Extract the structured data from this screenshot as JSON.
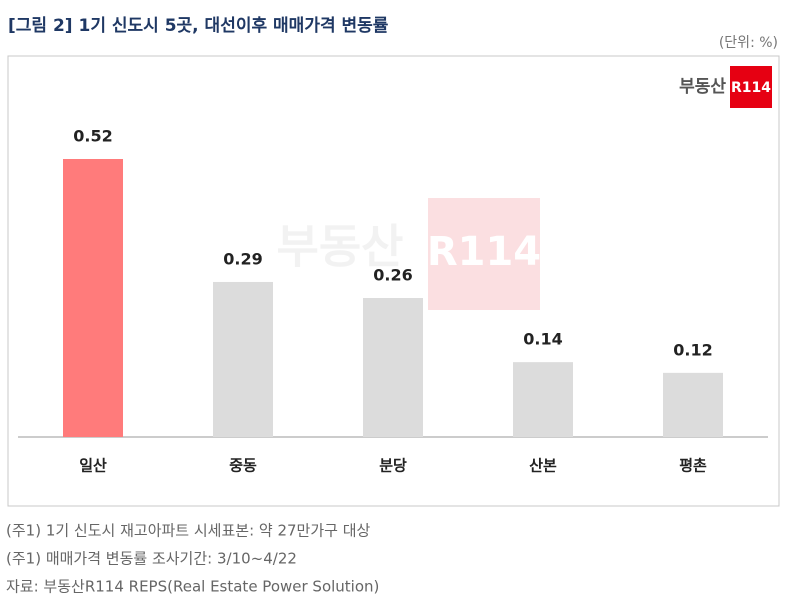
{
  "chart_data": {
    "type": "bar",
    "title": "[그림 2] 1기 신도시 5곳, 대선이후 매매가격 변동률",
    "unit": "(단위: %)",
    "logo": {
      "name": "부동산",
      "mark": "R114"
    },
    "categories": [
      "일산",
      "중동",
      "분당",
      "산본",
      "평촌"
    ],
    "values": [
      0.52,
      0.29,
      0.26,
      0.14,
      0.12
    ],
    "colors": [
      "#ff7b7b",
      "#dcdcdc",
      "#dcdcdc",
      "#dcdcdc",
      "#dcdcdc"
    ],
    "notes": [
      "(주1) 1기 신도시 재고아파트 시세표본: 약 27만가구 대상",
      "(주1) 매매가격 변동률 조사기간: 3/10~4/22",
      "자료: 부동산R114 REPS(Real Estate Power Solution)"
    ]
  }
}
